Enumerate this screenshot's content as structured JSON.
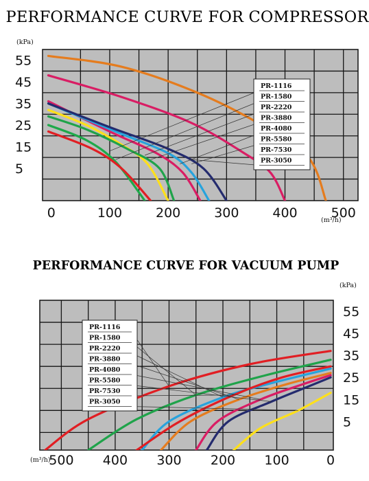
{
  "chart_data": [
    {
      "type": "line",
      "title": "PERFORMANCE CURVE FOR COMPRESSOR",
      "xlabel": "(m³/h)",
      "ylabel": "(kPa)",
      "x_ticks": [
        "0",
        "100",
        "200",
        "300",
        "400",
        "500"
      ],
      "y_ticks": [
        "55",
        "45",
        "35",
        "25",
        "15",
        "5"
      ],
      "xlim": [
        -15,
        525
      ],
      "ylim": [
        -10,
        60
      ],
      "grid": true,
      "legend_position": "top-right",
      "series": [
        {
          "name": "PR-1116",
          "color": "#1ea94a",
          "points": [
            [
              -5,
              25
            ],
            [
              60,
              18
            ],
            [
              110,
              8
            ],
            [
              160,
              -10
            ]
          ]
        },
        {
          "name": "PR-1580",
          "color": "#e11e23",
          "points": [
            [
              -5,
              22
            ],
            [
              70,
              14
            ],
            [
              120,
              5
            ],
            [
              170,
              -10
            ]
          ]
        },
        {
          "name": "PR-2220",
          "color": "#ffe01a",
          "points": [
            [
              -5,
              32
            ],
            [
              60,
              25
            ],
            [
              120,
              16
            ],
            [
              165,
              7
            ],
            [
              200,
              -10
            ]
          ]
        },
        {
          "name": "PR-3880",
          "color": "#1fa34a",
          "points": [
            [
              -5,
              29
            ],
            [
              60,
              23
            ],
            [
              130,
              14
            ],
            [
              185,
              5
            ],
            [
              210,
              -10
            ]
          ]
        },
        {
          "name": "PR-4080",
          "color": "#d91d64",
          "points": [
            [
              -5,
              36
            ],
            [
              100,
              22
            ],
            [
              180,
              12
            ],
            [
              225,
              3
            ],
            [
              255,
              -10
            ]
          ]
        },
        {
          "name": "PR-5580",
          "color": "#27a3dd",
          "points": [
            [
              -5,
              35
            ],
            [
              110,
              22
            ],
            [
              200,
              12
            ],
            [
              240,
              3
            ],
            [
              270,
              -10
            ]
          ]
        },
        {
          "name": "PR-7530",
          "color": "#d91d64",
          "points": [
            [
              -5,
              48
            ],
            [
              120,
              38
            ],
            [
              240,
              26
            ],
            [
              330,
              12
            ],
            [
              375,
              3
            ],
            [
              400,
              -10
            ]
          ]
        },
        {
          "name": "PR-3050",
          "color": "#242b6e",
          "points": [
            [
              -5,
              35
            ],
            [
              100,
              24
            ],
            [
              200,
              14
            ],
            [
              260,
              5
            ],
            [
              300,
              -10
            ]
          ]
        },
        {
          "name": "",
          "color": "#e57c1e",
          "points": [
            [
              -5,
              57
            ],
            [
              120,
              52
            ],
            [
              250,
              40
            ],
            [
              360,
              25
            ],
            [
              440,
              10
            ],
            [
              470,
              -10
            ]
          ]
        }
      ]
    },
    {
      "type": "line",
      "title": "PERFORMANCE CURVE FOR VACUUM PUMP",
      "xlabel": "(m³/h)",
      "ylabel": "(kPa)",
      "x_ticks": [
        "500",
        "400",
        "300",
        "200",
        "100",
        "0"
      ],
      "y_ticks": [
        "55",
        "45",
        "35",
        "25",
        "15",
        "5"
      ],
      "xlim": [
        540,
        -5
      ],
      "ylim": [
        -8,
        60
      ],
      "grid": true,
      "legend_position": "top-left",
      "series": [
        {
          "name": "PR-1116",
          "color": "#e11e23",
          "points": [
            [
              530,
              -8
            ],
            [
              450,
              6
            ],
            [
              300,
              21
            ],
            [
              150,
              31
            ],
            [
              0,
              37
            ]
          ]
        },
        {
          "name": "PR-1580",
          "color": "#1fa34a",
          "points": [
            [
              450,
              -8
            ],
            [
              360,
              6
            ],
            [
              250,
              17
            ],
            [
              120,
              26
            ],
            [
              0,
              33
            ]
          ]
        },
        {
          "name": "PR-2220",
          "color": "#27a3dd",
          "points": [
            [
              350,
              -8
            ],
            [
              300,
              5
            ],
            [
              200,
              16
            ],
            [
              100,
              23
            ],
            [
              0,
              29
            ]
          ]
        },
        {
          "name": "PR-3880",
          "color": "#e57c1e",
          "points": [
            [
              315,
              -8
            ],
            [
              260,
              5
            ],
            [
              170,
              15
            ],
            [
              80,
              22
            ],
            [
              0,
              27
            ]
          ]
        },
        {
          "name": "PR-4080",
          "color": "#d91d64",
          "points": [
            [
              250,
              -8
            ],
            [
              210,
              5
            ],
            [
              130,
              15
            ],
            [
              50,
              22
            ],
            [
              0,
              26
            ]
          ]
        },
        {
          "name": "PR-5580",
          "color": "#242b6e",
          "points": [
            [
              230,
              -8
            ],
            [
              190,
              5
            ],
            [
              110,
              14
            ],
            [
              40,
              21
            ],
            [
              0,
              25
            ]
          ]
        },
        {
          "name": "PR-7530",
          "color": "#e11e23",
          "points": [
            [
              360,
              -8
            ],
            [
              280,
              5
            ],
            [
              180,
              17
            ],
            [
              90,
              25
            ],
            [
              0,
              30
            ]
          ]
        },
        {
          "name": "PR-3050",
          "color": "#ffe01a",
          "points": [
            [
              180,
              -8
            ],
            [
              130,
              2
            ],
            [
              60,
              10
            ],
            [
              0,
              18
            ]
          ]
        }
      ]
    }
  ]
}
